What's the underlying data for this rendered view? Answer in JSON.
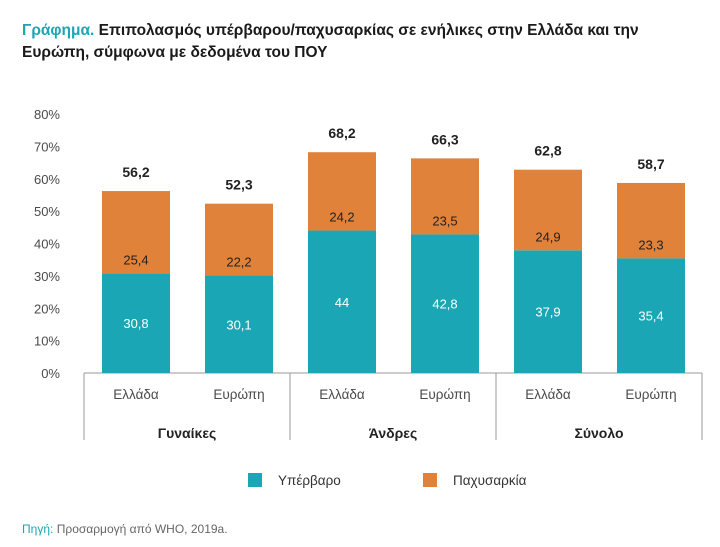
{
  "title": {
    "label": "Γράφημα.",
    "text": "Επιπολασμός υπέρβαρου/παχυσαρκίας σε ενήλικες στην Ελλάδα και την Ευρώπη, σύμφωνα με δεδομένα του ΠΟΥ"
  },
  "source": {
    "label": "Πηγή:",
    "text": "Προσαρμογή από WHO, 2019a."
  },
  "colors": {
    "overweight": "#1aa6b4",
    "obesity": "#e0823a",
    "axis": "#9a9a9a"
  },
  "chart_data": {
    "type": "bar",
    "stacked": true,
    "ylim": [
      0,
      80
    ],
    "yticks": [
      0,
      10,
      20,
      30,
      40,
      50,
      60,
      70,
      80
    ],
    "ytick_labels": [
      "0%",
      "10%",
      "20%",
      "30%",
      "40%",
      "50%",
      "60%",
      "70%",
      "80%"
    ],
    "categories": [
      "Ελλάδα",
      "Ευρώπη",
      "Ελλάδα",
      "Ευρώπη",
      "Ελλάδα",
      "Ευρώπη"
    ],
    "groups": [
      "Γυναίκες",
      "Άνδρες",
      "Σύνολο"
    ],
    "series": [
      {
        "name": "Υπέρβαρο",
        "values": [
          30.8,
          30.1,
          44,
          42.8,
          37.9,
          35.4
        ],
        "labels": [
          "30,8",
          "30,1",
          "44",
          "42,8",
          "37,9",
          "35,4"
        ]
      },
      {
        "name": "Παχυσαρκία",
        "values": [
          25.4,
          22.2,
          24.2,
          23.5,
          24.9,
          23.3
        ],
        "labels": [
          "25,4",
          "22,2",
          "24,2",
          "23,5",
          "24,9",
          "23,3"
        ]
      }
    ],
    "totals": [
      56.2,
      52.3,
      68.2,
      66.3,
      62.8,
      58.7
    ],
    "total_labels": [
      "56,2",
      "52,3",
      "68,2",
      "66,3",
      "62,8",
      "58,7"
    ],
    "legend_position": "bottom"
  }
}
